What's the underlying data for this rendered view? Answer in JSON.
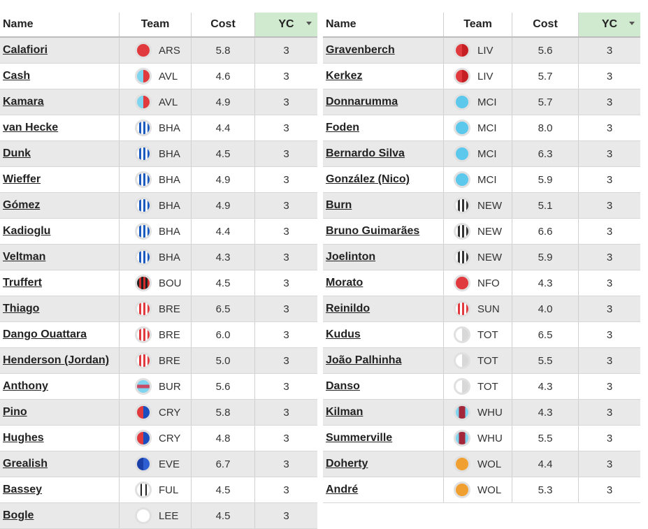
{
  "columns": {
    "name": "Name",
    "team": "Team",
    "cost": "Cost",
    "yc": "YC"
  },
  "left_table": [
    {
      "name": "Calafiori",
      "team": "ARS",
      "icon": "ars",
      "cost": "5.8",
      "yc": "3"
    },
    {
      "name": "Cash",
      "team": "AVL",
      "icon": "avl",
      "cost": "4.6",
      "yc": "3"
    },
    {
      "name": "Kamara",
      "team": "AVL",
      "icon": "avl",
      "cost": "4.9",
      "yc": "3"
    },
    {
      "name": "van Hecke",
      "team": "BHA",
      "icon": "bha",
      "cost": "4.4",
      "yc": "3"
    },
    {
      "name": "Dunk",
      "team": "BHA",
      "icon": "bha",
      "cost": "4.5",
      "yc": "3"
    },
    {
      "name": "Wieffer",
      "team": "BHA",
      "icon": "bha",
      "cost": "4.9",
      "yc": "3"
    },
    {
      "name": "Gómez",
      "team": "BHA",
      "icon": "bha",
      "cost": "4.9",
      "yc": "3"
    },
    {
      "name": "Kadioglu",
      "team": "BHA",
      "icon": "bha",
      "cost": "4.4",
      "yc": "3"
    },
    {
      "name": "Veltman",
      "team": "BHA",
      "icon": "bha",
      "cost": "4.3",
      "yc": "3"
    },
    {
      "name": "Truffert",
      "team": "BOU",
      "icon": "bou",
      "cost": "4.5",
      "yc": "3"
    },
    {
      "name": "Thiago",
      "team": "BRE",
      "icon": "bre",
      "cost": "6.5",
      "yc": "3"
    },
    {
      "name": "Dango Ouattara",
      "team": "BRE",
      "icon": "bre",
      "cost": "6.0",
      "yc": "3"
    },
    {
      "name": "Henderson (Jordan)",
      "team": "BRE",
      "icon": "bre",
      "cost": "5.0",
      "yc": "3"
    },
    {
      "name": "Anthony",
      "team": "BUR",
      "icon": "bur",
      "cost": "5.6",
      "yc": "3"
    },
    {
      "name": "Pino",
      "team": "CRY",
      "icon": "cry",
      "cost": "5.8",
      "yc": "3"
    },
    {
      "name": "Hughes",
      "team": "CRY",
      "icon": "cry",
      "cost": "4.8",
      "yc": "3"
    },
    {
      "name": "Grealish",
      "team": "EVE",
      "icon": "eve",
      "cost": "6.7",
      "yc": "3"
    },
    {
      "name": "Bassey",
      "team": "FUL",
      "icon": "ful",
      "cost": "4.5",
      "yc": "3"
    },
    {
      "name": "Bogle",
      "team": "LEE",
      "icon": "lee",
      "cost": "4.5",
      "yc": "3"
    }
  ],
  "right_table": [
    {
      "name": "Gravenberch",
      "team": "LIV",
      "icon": "liv",
      "cost": "5.6",
      "yc": "3"
    },
    {
      "name": "Kerkez",
      "team": "LIV",
      "icon": "liv",
      "cost": "5.7",
      "yc": "3"
    },
    {
      "name": "Donnarumma",
      "team": "MCI",
      "icon": "mci",
      "cost": "5.7",
      "yc": "3"
    },
    {
      "name": "Foden",
      "team": "MCI",
      "icon": "mci",
      "cost": "8.0",
      "yc": "3"
    },
    {
      "name": "Bernardo Silva",
      "team": "MCI",
      "icon": "mci",
      "cost": "6.3",
      "yc": "3"
    },
    {
      "name": "González (Nico)",
      "team": "MCI",
      "icon": "mci",
      "cost": "5.9",
      "yc": "3"
    },
    {
      "name": "Burn",
      "team": "NEW",
      "icon": "new",
      "cost": "5.1",
      "yc": "3"
    },
    {
      "name": "Bruno Guimarães",
      "team": "NEW",
      "icon": "new",
      "cost": "6.6",
      "yc": "3"
    },
    {
      "name": "Joelinton",
      "team": "NEW",
      "icon": "new",
      "cost": "5.9",
      "yc": "3"
    },
    {
      "name": "Morato",
      "team": "NFO",
      "icon": "nfo",
      "cost": "4.3",
      "yc": "3"
    },
    {
      "name": "Reinildo",
      "team": "SUN",
      "icon": "sun",
      "cost": "4.0",
      "yc": "3"
    },
    {
      "name": "Kudus",
      "team": "TOT",
      "icon": "tot",
      "cost": "6.5",
      "yc": "3"
    },
    {
      "name": "João Palhinha",
      "team": "TOT",
      "icon": "tot",
      "cost": "5.5",
      "yc": "3"
    },
    {
      "name": "Danso",
      "team": "TOT",
      "icon": "tot",
      "cost": "4.3",
      "yc": "3"
    },
    {
      "name": "Kilman",
      "team": "WHU",
      "icon": "whu",
      "cost": "4.3",
      "yc": "3"
    },
    {
      "name": "Summerville",
      "team": "WHU",
      "icon": "whu",
      "cost": "5.5",
      "yc": "3"
    },
    {
      "name": "Doherty",
      "team": "WOL",
      "icon": "wol",
      "cost": "4.4",
      "yc": "3"
    },
    {
      "name": "André",
      "team": "WOL",
      "icon": "wol",
      "cost": "5.3",
      "yc": "3"
    }
  ]
}
